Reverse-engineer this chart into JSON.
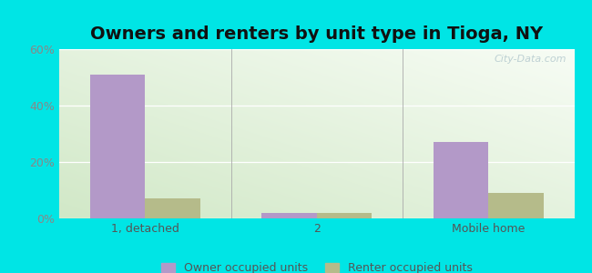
{
  "title": "Owners and renters by unit type in Tioga, NY",
  "categories": [
    "1, detached",
    "2",
    "Mobile home"
  ],
  "owner_values": [
    51,
    2,
    27
  ],
  "renter_values": [
    7,
    2,
    9
  ],
  "owner_color": "#b399c8",
  "renter_color": "#b5bb8a",
  "ylim": [
    0,
    60
  ],
  "yticks": [
    0,
    20,
    40,
    60
  ],
  "ytick_labels": [
    "0%",
    "20%",
    "40%",
    "60%"
  ],
  "background_color": "#00e5e5",
  "bar_width": 0.32,
  "title_fontsize": 14,
  "legend_labels": [
    "Owner occupied units",
    "Renter occupied units"
  ],
  "watermark": "City-Data.com",
  "n_categories": 3,
  "xlim": [
    -0.5,
    2.5
  ]
}
